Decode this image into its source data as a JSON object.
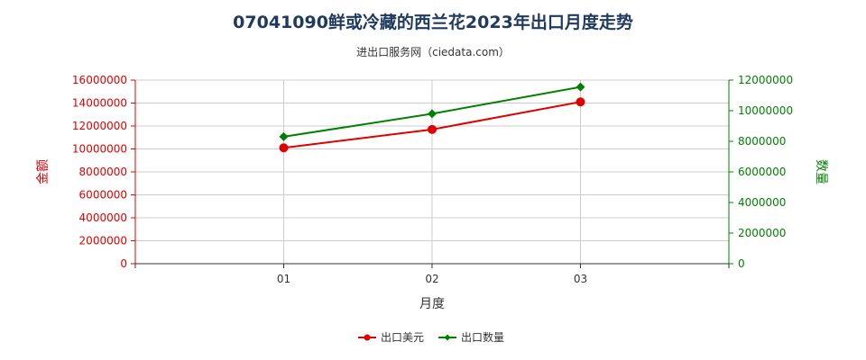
{
  "title": "07041090鲜或冷藏的西兰花2023年出口月度走势",
  "subtitle": "进出口服务网（ciedata.com）",
  "colors": {
    "series1": "#e00000",
    "series2": "#008000",
    "grid": "#cccccc",
    "title": "#1f3a5f"
  },
  "chart_data": {
    "type": "line",
    "xlabel": "月度",
    "ylabel_left": "金额",
    "ylabel_right": "数量",
    "categories": [
      "01",
      "02",
      "03"
    ],
    "y_left": {
      "min": 0,
      "max": 16000000,
      "step": 2000000,
      "ticks": [
        "0",
        "2000000",
        "4000000",
        "6000000",
        "8000000",
        "10000000",
        "12000000",
        "14000000",
        "16000000"
      ]
    },
    "y_right": {
      "min": 0,
      "max": 12000000,
      "step": 2000000,
      "ticks": [
        "0",
        "2000000",
        "4000000",
        "6000000",
        "8000000",
        "10000000",
        "12000000"
      ]
    },
    "series": [
      {
        "name": "出口美元",
        "axis": "left",
        "color": "#e00000",
        "marker": "circle",
        "values": [
          10100000,
          11700000,
          14100000
        ]
      },
      {
        "name": "出口数量",
        "axis": "right",
        "color": "#008000",
        "marker": "diamond",
        "values": [
          8300000,
          9800000,
          11550000
        ]
      }
    ],
    "grid": true,
    "legend_position": "bottom-center"
  }
}
